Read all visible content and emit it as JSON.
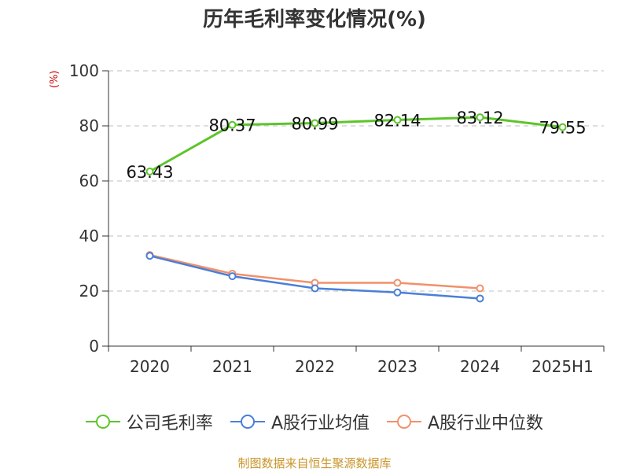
{
  "title": "历年毛利率变化情况(%)",
  "source": "制图数据来自恒生聚源数据库",
  "chart_data": {
    "type": "line",
    "title": "历年毛利率变化情况(%)",
    "ylabel": "(%)",
    "xlabel": "",
    "categories": [
      "2020",
      "2021",
      "2022",
      "2023",
      "2024",
      "2025H1"
    ],
    "ylim": [
      0,
      100
    ],
    "yticks": [
      0,
      20,
      40,
      60,
      80,
      100
    ],
    "grid": true,
    "legend_position": "bottom",
    "series": [
      {
        "name": "公司毛利率",
        "color": "#5cc52a",
        "values": [
          63.43,
          80.37,
          80.99,
          82.14,
          83.12,
          79.55
        ],
        "labels": [
          "63.43",
          "80.37",
          "80.99",
          "82.14",
          "83.12",
          "79.55"
        ]
      },
      {
        "name": "A股行业均值",
        "color": "#4a7fd8",
        "values": [
          32.8,
          25.4,
          21.0,
          19.5,
          17.3,
          null
        ]
      },
      {
        "name": "A股行业中位数",
        "color": "#f2906a",
        "values": [
          33.1,
          26.3,
          23.0,
          23.0,
          21.0,
          null
        ]
      }
    ]
  }
}
